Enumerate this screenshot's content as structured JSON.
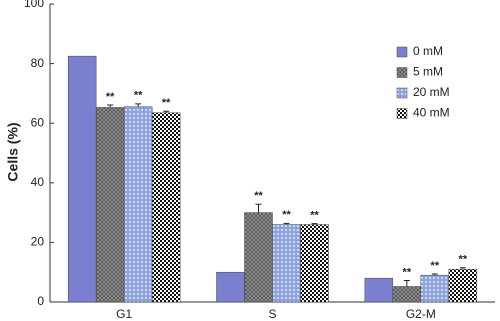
{
  "chart_data": {
    "type": "bar",
    "y_label": "Cells (%)",
    "categories": [
      "G1",
      "S",
      "G2-M"
    ],
    "series": [
      {
        "name": "0 mM",
        "color": "#7b7fcf",
        "pattern": "solid",
        "values": [
          82.5,
          10,
          8
        ]
      },
      {
        "name": "5 mM",
        "color": "#5a5a5a",
        "pattern": "crosshatch",
        "values": [
          65.3,
          30,
          5.2
        ],
        "errors": [
          0.8,
          2.8,
          2
        ],
        "labels": [
          "**",
          "**",
          "**"
        ]
      },
      {
        "name": "20 mM",
        "color": "#8fa2e0",
        "pattern": "dots",
        "values": [
          65.5,
          26,
          9
        ],
        "errors": [
          1,
          0.4,
          0.4
        ],
        "labels": [
          "**",
          "**",
          "**"
        ]
      },
      {
        "name": "40 mM",
        "color": "#111111",
        "pattern": "checker",
        "values": [
          63.5,
          26,
          11
        ],
        "errors": [
          0.5,
          0.3,
          0.5
        ],
        "labels": [
          "**",
          "**",
          "**"
        ]
      }
    ],
    "ylim": [
      0,
      100
    ],
    "yticks": [
      0,
      20,
      40,
      60,
      80,
      100
    ],
    "grid": false,
    "legend": "top-right"
  }
}
